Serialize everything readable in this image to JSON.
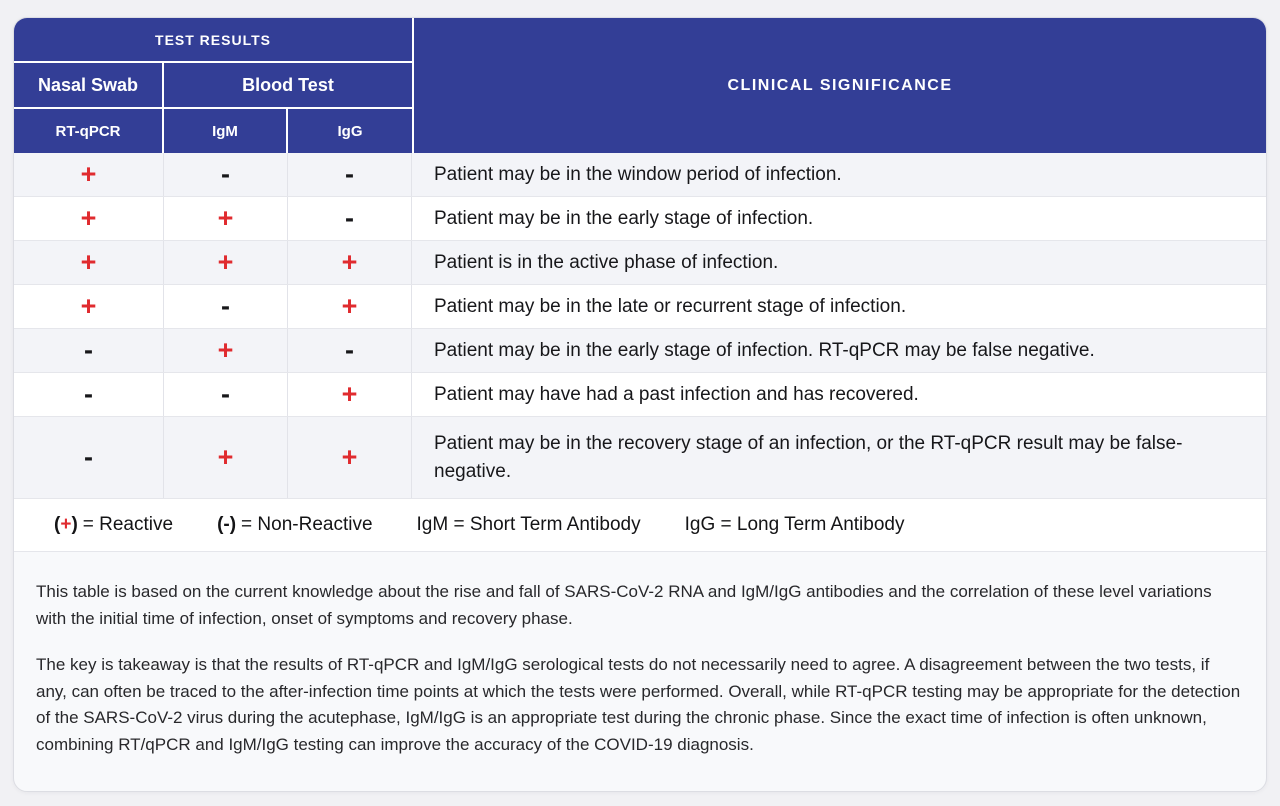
{
  "table": {
    "header": {
      "test_results": "TEST RESULTS",
      "nasal_swab": "Nasal Swab",
      "blood_test": "Blood Test",
      "col_rtqpcr": "RT-qPCR",
      "col_igm": "IgM",
      "col_igg": "IgG",
      "clinical_significance": "CLINICAL SIGNIFICANCE"
    },
    "rows": [
      {
        "rtqpcr": "+",
        "igm": "-",
        "igg": "-",
        "significance": "Patient may be in the window period of infection."
      },
      {
        "rtqpcr": "+",
        "igm": "+",
        "igg": "-",
        "significance": "Patient may be in the early stage of infection."
      },
      {
        "rtqpcr": "+",
        "igm": "+",
        "igg": "+",
        "significance": "Patient is in the active phase of infection."
      },
      {
        "rtqpcr": "+",
        "igm": "-",
        "igg": "+",
        "significance": "Patient may be in the late or recurrent stage of infection."
      },
      {
        "rtqpcr": "-",
        "igm": "+",
        "igg": "-",
        "significance": "Patient may be in the early stage of infection. RT-qPCR may be false negative."
      },
      {
        "rtqpcr": "-",
        "igm": "-",
        "igg": "+",
        "significance": "Patient may have had a past infection and has recovered."
      },
      {
        "rtqpcr": "-",
        "igm": "+",
        "igg": "+",
        "significance": "Patient may be in the recovery stage of an infection, or the RT-qPCR result may be false-negative."
      }
    ]
  },
  "legend": {
    "reactive": {
      "open": "(",
      "sign": "+",
      "close": ")",
      "label": "= Reactive"
    },
    "non_reactive": {
      "open": "(",
      "sign": "-",
      "close": ")",
      "label": "= Non-Reactive"
    },
    "igm": "IgM = Short Term Antibody",
    "igg": "IgG = Long Term Antibody"
  },
  "footnotes": [
    "This table is based on the current knowledge about the rise and fall of SARS-CoV-2 RNA and IgM/IgG antibodies and the correlation of these level variations with the initial time of infection, onset of symptoms and recovery phase.",
    "The key is takeaway is that the results of RT-qPCR and IgM/IgG serological tests do not necessarily need to agree. A disagreement between the two tests, if any, can often be traced to the after-infection time points at which the tests were performed. Overall, while RT-qPCR testing may be appropriate for the detection of the SARS-CoV-2 virus during the acutephase, IgM/IgG is an appropriate test during the chronic phase. Since the exact time of infection is often unknown, combining RT/qPCR and IgM/IgG testing can improve the accuracy of the COVID-19 diagnosis."
  ],
  "colors": {
    "header_blue": "#333e96",
    "reactive_red": "#e02b2f",
    "row_alt_gray": "#f3f4f8",
    "page_background": "#f1f1f4"
  }
}
